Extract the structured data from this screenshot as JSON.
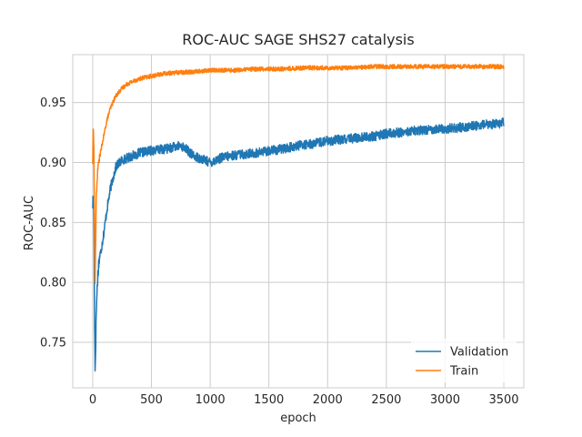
{
  "chart_data": {
    "type": "line",
    "title": "ROC-AUC SAGE SHS27 catalysis",
    "xlabel": "epoch",
    "ylabel": "ROC-AUC",
    "xlim": [
      -170,
      3670
    ],
    "ylim": [
      0.712,
      0.99
    ],
    "xticks": [
      0,
      500,
      1000,
      1500,
      2000,
      2500,
      3000,
      3500
    ],
    "xtick_labels": [
      "0",
      "500",
      "1000",
      "1500",
      "2000",
      "2500",
      "3000",
      "3500"
    ],
    "yticks": [
      0.75,
      0.8,
      0.85,
      0.9,
      0.95
    ],
    "ytick_labels": [
      "0.75",
      "0.80",
      "0.85",
      "0.90",
      "0.95"
    ],
    "grid": true,
    "legend_position": "lower-right",
    "series": [
      {
        "name": "Validation",
        "color": "#1f77b4",
        "noise": 0.004,
        "x": [
          0,
          5,
          10,
          15,
          20,
          25,
          30,
          40,
          50,
          60,
          70,
          80,
          100,
          120,
          150,
          180,
          200,
          250,
          300,
          350,
          400,
          500,
          600,
          700,
          750,
          800,
          850,
          900,
          950,
          1000,
          1050,
          1100,
          1200,
          1300,
          1400,
          1500,
          1600,
          1700,
          1800,
          1900,
          2000,
          2100,
          2200,
          2300,
          2400,
          2500,
          2600,
          2700,
          2800,
          2900,
          3000,
          3100,
          3200,
          3300,
          3400,
          3500
        ],
        "values": [
          0.865,
          0.872,
          0.86,
          0.78,
          0.726,
          0.745,
          0.775,
          0.8,
          0.815,
          0.822,
          0.826,
          0.832,
          0.845,
          0.86,
          0.878,
          0.89,
          0.897,
          0.902,
          0.904,
          0.906,
          0.908,
          0.91,
          0.911,
          0.913,
          0.914,
          0.911,
          0.906,
          0.904,
          0.902,
          0.9,
          0.902,
          0.904,
          0.906,
          0.907,
          0.908,
          0.91,
          0.911,
          0.913,
          0.915,
          0.916,
          0.918,
          0.919,
          0.92,
          0.921,
          0.922,
          0.924,
          0.925,
          0.926,
          0.927,
          0.928,
          0.928,
          0.929,
          0.93,
          0.931,
          0.932,
          0.933
        ]
      },
      {
        "name": "Train",
        "color": "#ff7f0e",
        "noise": 0.0018,
        "x": [
          0,
          5,
          10,
          15,
          20,
          25,
          30,
          40,
          50,
          60,
          80,
          100,
          120,
          150,
          180,
          200,
          250,
          300,
          350,
          400,
          500,
          600,
          700,
          800,
          900,
          1000,
          1200,
          1400,
          1600,
          1800,
          2000,
          2200,
          2400,
          2600,
          2800,
          3000,
          3200,
          3400,
          3500
        ],
        "values": [
          0.9,
          0.934,
          0.91,
          0.85,
          0.8,
          0.83,
          0.87,
          0.89,
          0.9,
          0.905,
          0.915,
          0.925,
          0.935,
          0.945,
          0.952,
          0.956,
          0.962,
          0.966,
          0.968,
          0.97,
          0.972,
          0.974,
          0.975,
          0.9755,
          0.976,
          0.977,
          0.977,
          0.978,
          0.978,
          0.979,
          0.979,
          0.979,
          0.98,
          0.98,
          0.98,
          0.98,
          0.98,
          0.98,
          0.98
        ]
      }
    ]
  }
}
